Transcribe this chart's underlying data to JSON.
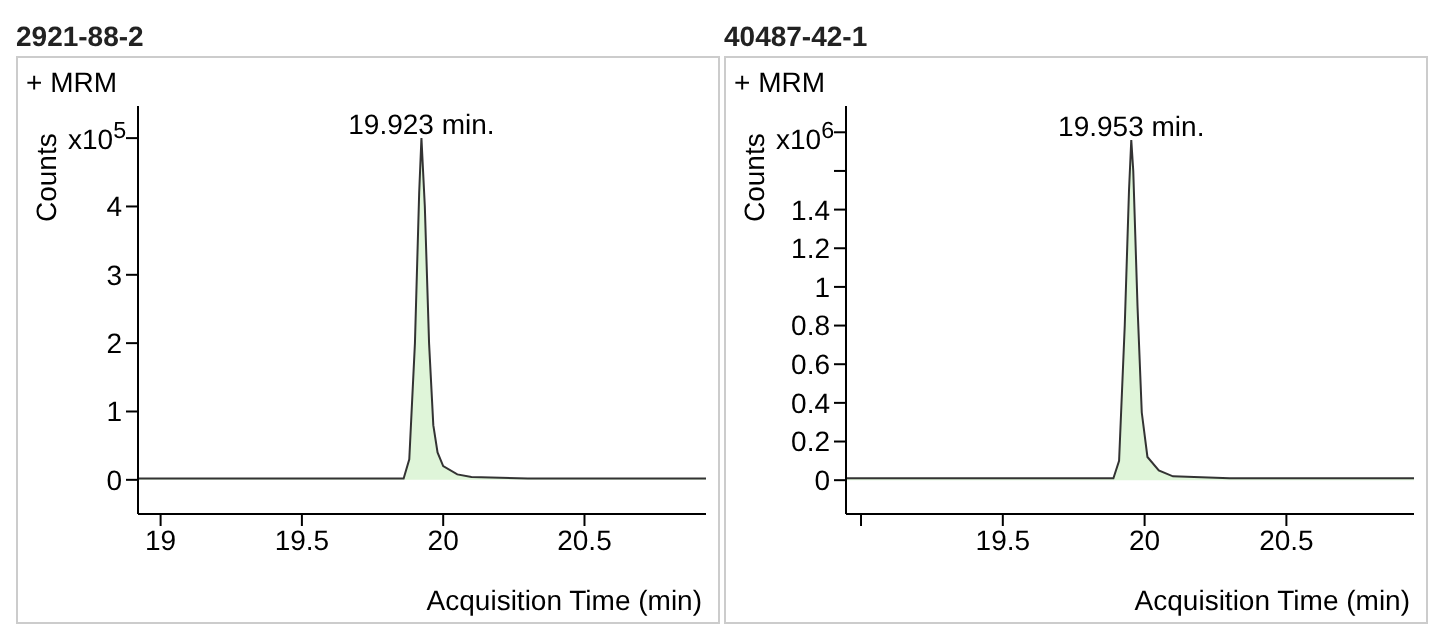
{
  "chart_data": [
    {
      "type": "area",
      "title": "2921-88-2",
      "xlabel": "Acquisition Time (min)",
      "ylabel": "Counts",
      "annotations": [
        "+ MRM",
        "x10$^{5}$",
        {
          "text": "19.923 min.",
          "x": 19.923,
          "y": 5.0
        }
      ],
      "x": [
        18.92,
        19.5,
        19.86,
        19.88,
        19.9,
        19.915,
        19.923,
        19.935,
        19.95,
        19.965,
        19.98,
        20.0,
        20.05,
        20.1,
        20.3,
        20.93
      ],
      "series": [
        {
          "color": "#dff5d9",
          "values": [
            0.02,
            0.02,
            0.02,
            0.3,
            2.0,
            4.2,
            5.0,
            4.0,
            2.0,
            0.8,
            0.4,
            0.2,
            0.08,
            0.04,
            0.02,
            0.02
          ]
        }
      ],
      "xlim": [
        18.92,
        20.93
      ],
      "xticks": [
        19,
        19.5,
        20,
        20.5
      ],
      "ylim": [
        -0.5,
        5.47
      ],
      "yticks": [
        0,
        1,
        2,
        3,
        4,
        {
          "value": 5,
          "label": null
        }
      ]
    },
    {
      "type": "area",
      "title": "40487-42-1",
      "xlabel": "Acquisition Time (min)",
      "ylabel": "Counts",
      "annotations": [
        "+ MRM",
        "x10$^{6}$",
        {
          "text": "19.953 min.",
          "x": 19.953,
          "y": 1.76
        }
      ],
      "x": [
        18.947,
        19.5,
        19.89,
        19.91,
        19.93,
        19.945,
        19.953,
        19.96,
        19.975,
        19.99,
        20.01,
        20.05,
        20.1,
        20.3,
        20.95
      ],
      "series": [
        {
          "color": "#dff5d9",
          "values": [
            0.01,
            0.01,
            0.01,
            0.1,
            0.8,
            1.5,
            1.76,
            1.6,
            0.9,
            0.35,
            0.12,
            0.05,
            0.02,
            0.01,
            0.01
          ]
        }
      ],
      "xlim": [
        18.947,
        20.95
      ],
      "xticks": [
        {
          "value": 19,
          "label": null
        },
        19.5,
        20,
        20.5
      ],
      "ylim": [
        -0.175,
        1.936
      ],
      "yticks": [
        0,
        0.2,
        0.4,
        0.6,
        0.8,
        1,
        1.2,
        1.4,
        {
          "value": 1.6,
          "label": null
        },
        {
          "value": 1.8,
          "label": null
        }
      ]
    }
  ]
}
